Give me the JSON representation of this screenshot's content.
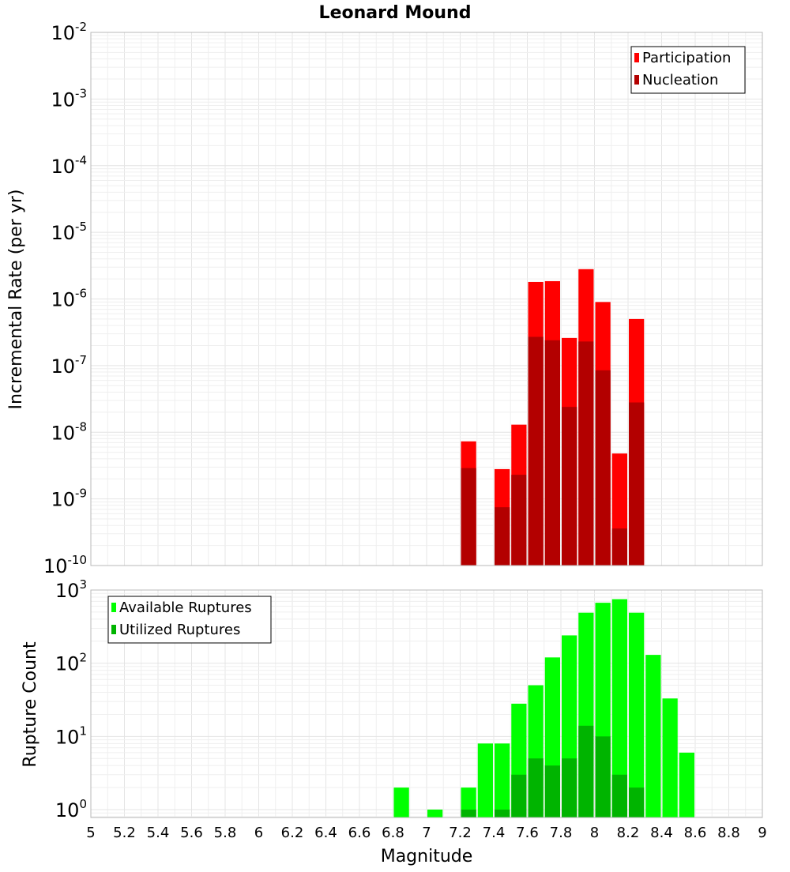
{
  "chart_data": [
    {
      "type": "bar",
      "title": "Leonard Mound",
      "ylabel": "Incremental Rate (per yr)",
      "yscale": "log",
      "ylim": [
        1e-10,
        0.01
      ],
      "xlim": [
        5,
        9
      ],
      "grid": true,
      "legend_position": "top-right",
      "bar_width": 0.1,
      "yticks": [
        {
          "base": "10",
          "exp": "-10",
          "value": 1e-10
        },
        {
          "base": "10",
          "exp": "-9",
          "value": 1e-09
        },
        {
          "base": "10",
          "exp": "-8",
          "value": 1e-08
        },
        {
          "base": "10",
          "exp": "-7",
          "value": 1e-07
        },
        {
          "base": "10",
          "exp": "-6",
          "value": 1e-06
        },
        {
          "base": "10",
          "exp": "-5",
          "value": 1e-05
        },
        {
          "base": "10",
          "exp": "-4",
          "value": 0.0001
        },
        {
          "base": "10",
          "exp": "-3",
          "value": 0.001
        },
        {
          "base": "10",
          "exp": "-2",
          "value": 0.01
        }
      ],
      "series": [
        {
          "name": "Participation",
          "color": "#ff0000",
          "x": [
            7.25,
            7.45,
            7.55,
            7.65,
            7.75,
            7.85,
            7.95,
            8.05,
            8.15,
            8.25
          ],
          "values": [
            7.3e-09,
            2.8e-09,
            1.3e-08,
            1.8e-06,
            1.85e-06,
            2.6e-07,
            2.8e-06,
            9e-07,
            4.8e-09,
            5e-07
          ]
        },
        {
          "name": "Nucleation",
          "color": "#b30000",
          "x": [
            7.25,
            7.45,
            7.55,
            7.65,
            7.75,
            7.85,
            7.95,
            8.05,
            8.15,
            8.25
          ],
          "values": [
            2.9e-09,
            7.5e-10,
            2.3e-09,
            2.7e-07,
            2.4e-07,
            2.4e-08,
            2.3e-07,
            8.5e-08,
            3.6e-10,
            2.8e-08
          ]
        }
      ]
    },
    {
      "type": "bar",
      "xlabel": "Magnitude",
      "ylabel": "Rupture Count",
      "yscale": "log",
      "ylim": [
        0.78,
        1000
      ],
      "xlim": [
        5,
        9
      ],
      "grid": true,
      "legend_position": "top-left",
      "bar_width": 0.1,
      "xticks": [
        "5",
        "5.2",
        "5.4",
        "5.6",
        "5.8",
        "6",
        "6.2",
        "6.4",
        "6.6",
        "6.8",
        "7",
        "7.2",
        "7.4",
        "7.6",
        "7.8",
        "8",
        "8.2",
        "8.4",
        "8.6",
        "8.8",
        "9"
      ],
      "yticks": [
        {
          "base": "10",
          "exp": "0",
          "value": 1
        },
        {
          "base": "10",
          "exp": "1",
          "value": 10
        },
        {
          "base": "10",
          "exp": "2",
          "value": 100
        },
        {
          "base": "10",
          "exp": "3",
          "value": 1000
        }
      ],
      "series": [
        {
          "name": "Available Ruptures",
          "color": "#00ff00",
          "x": [
            6.85,
            7.05,
            7.25,
            7.35,
            7.45,
            7.55,
            7.65,
            7.75,
            7.85,
            7.95,
            8.05,
            8.15,
            8.25,
            8.35,
            8.45,
            8.55
          ],
          "values": [
            2,
            1,
            2,
            8,
            8,
            28,
            50,
            120,
            240,
            490,
            670,
            750,
            490,
            130,
            33,
            6
          ]
        },
        {
          "name": "Utilized Ruptures",
          "color": "#00b400",
          "x": [
            7.25,
            7.45,
            7.55,
            7.65,
            7.75,
            7.85,
            7.95,
            8.05,
            8.15,
            8.25
          ],
          "values": [
            1,
            1,
            3,
            5,
            4,
            5,
            14,
            10,
            3,
            2
          ]
        }
      ]
    }
  ]
}
